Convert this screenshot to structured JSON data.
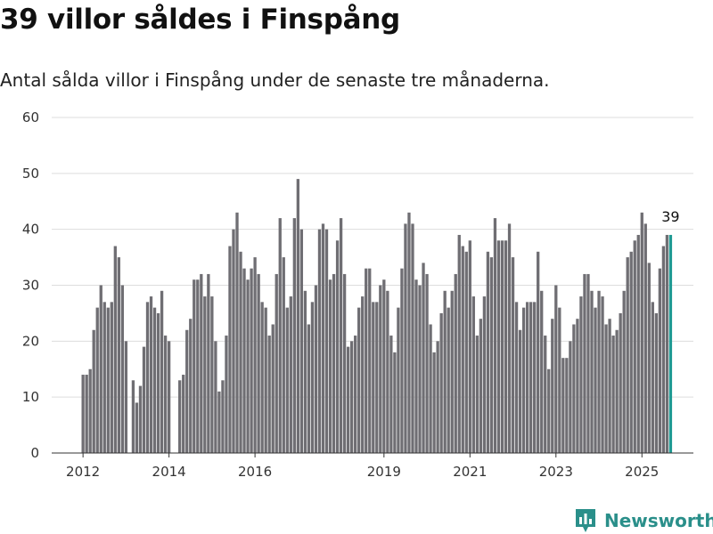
{
  "header": {
    "title": "39 villor såldes i Finspång",
    "subtitle": "Antal sålda villor i Finspång under de senaste tre månaderna."
  },
  "brand": {
    "name": "Newsworthy",
    "icon": "newsworthy-logo-icon"
  },
  "colors": {
    "bar": "#6f6e73",
    "highlight": "#1f9a93",
    "grid": "#dddddd",
    "axis": "#333333"
  },
  "chart_data": {
    "type": "bar",
    "title": "",
    "xlabel": "",
    "ylabel": "",
    "ylim": [
      0,
      60
    ],
    "yticks": [
      0,
      10,
      20,
      30,
      40,
      50,
      60
    ],
    "xticks": [
      "2012",
      "2014",
      "2016",
      "2019",
      "2021",
      "2023",
      "2025"
    ],
    "grid": true,
    "x_start": "2012-01",
    "values": [
      14,
      14,
      15,
      22,
      26,
      30,
      27,
      26,
      27,
      37,
      35,
      30,
      20,
      null,
      13,
      9,
      12,
      19,
      27,
      28,
      26,
      25,
      29,
      21,
      20,
      null,
      null,
      13,
      14,
      22,
      24,
      31,
      31,
      32,
      28,
      32,
      28,
      20,
      11,
      13,
      21,
      37,
      40,
      43,
      36,
      33,
      31,
      33,
      35,
      32,
      27,
      26,
      21,
      23,
      32,
      42,
      35,
      26,
      28,
      42,
      49,
      40,
      29,
      23,
      27,
      30,
      40,
      41,
      40,
      31,
      32,
      38,
      42,
      32,
      19,
      20,
      21,
      26,
      28,
      33,
      33,
      27,
      27,
      30,
      31,
      29,
      21,
      18,
      26,
      33,
      41,
      43,
      41,
      31,
      30,
      34,
      32,
      23,
      18,
      20,
      25,
      29,
      26,
      29,
      32,
      39,
      37,
      36,
      38,
      28,
      21,
      24,
      28,
      36,
      35,
      42,
      38,
      38,
      38,
      41,
      35,
      27,
      22,
      26,
      27,
      27,
      27,
      36,
      29,
      21,
      15,
      24,
      30,
      26,
      17,
      17,
      20,
      23,
      24,
      28,
      32,
      32,
      29,
      26,
      29,
      28,
      23,
      24,
      21,
      22,
      25,
      29,
      35,
      36,
      38,
      39,
      43,
      41,
      34,
      27,
      25,
      33,
      37,
      39,
      39
    ],
    "highlight_label": "39"
  }
}
